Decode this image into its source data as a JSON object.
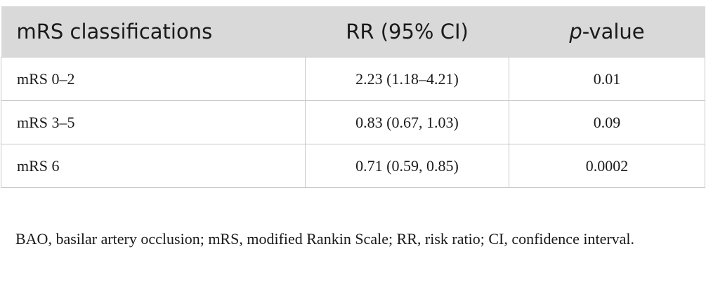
{
  "table": {
    "headers": {
      "col1": "mRS classifications",
      "col2": "RR (95% CI)",
      "col3_italic": "p",
      "col3_rest": "-value"
    },
    "rows": [
      {
        "classification": "mRS 0–2",
        "rr": "2.23 (1.18–4.21)",
        "p_value": "0.01"
      },
      {
        "classification": "mRS 3–5",
        "rr": "0.83 (0.67, 1.03)",
        "p_value": "0.09"
      },
      {
        "classification": "mRS 6",
        "rr": "0.71 (0.59, 0.85)",
        "p_value": "0.0002"
      }
    ]
  },
  "footnote": "BAO, basilar artery occlusion; mRS, modified Rankin Scale; RR, risk ratio; CI, confidence interval."
}
